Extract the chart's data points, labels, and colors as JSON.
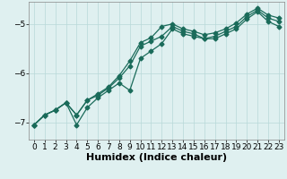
{
  "bg_color": "#dff0f0",
  "grid_color": "#b8d8d8",
  "line_color": "#1a6b5a",
  "marker": "D",
  "markersize": 2.5,
  "linewidth": 0.9,
  "xlabel": "Humidex (Indice chaleur)",
  "xlabel_fontsize": 8,
  "tick_fontsize": 6.5,
  "xlim": [
    -0.5,
    23.5
  ],
  "ylim": [
    -7.35,
    -4.55
  ],
  "yticks": [
    -7,
    -6,
    -5
  ],
  "xticks": [
    0,
    1,
    2,
    3,
    4,
    5,
    6,
    7,
    8,
    9,
    10,
    11,
    12,
    13,
    14,
    15,
    16,
    17,
    18,
    19,
    20,
    21,
    22,
    23
  ],
  "line1_x": [
    0,
    1,
    2,
    3,
    4,
    5,
    6,
    7,
    8,
    9,
    10,
    11,
    12,
    13,
    14,
    15,
    16,
    17,
    18,
    19,
    20,
    21,
    22,
    23
  ],
  "line1_y": [
    -7.05,
    -6.85,
    -6.75,
    -6.6,
    -6.85,
    -6.55,
    -6.45,
    -6.3,
    -6.1,
    -5.85,
    -5.45,
    -5.35,
    -5.25,
    -5.05,
    -5.15,
    -5.2,
    -5.3,
    -5.25,
    -5.15,
    -5.05,
    -4.85,
    -4.72,
    -4.88,
    -4.95
  ],
  "line2_x": [
    0,
    1,
    2,
    3,
    4,
    5,
    6,
    7,
    8,
    9,
    10,
    11,
    12,
    13,
    14,
    15,
    16,
    17,
    18,
    19,
    20,
    21,
    22,
    23
  ],
  "line2_y": [
    -7.05,
    -6.85,
    -6.75,
    -6.6,
    -7.05,
    -6.7,
    -6.5,
    -6.35,
    -6.2,
    -6.35,
    -5.7,
    -5.55,
    -5.4,
    -5.1,
    -5.2,
    -5.25,
    -5.3,
    -5.3,
    -5.2,
    -5.1,
    -4.9,
    -4.75,
    -4.95,
    -5.05
  ],
  "line3_x": [
    0,
    1,
    2,
    3,
    4,
    5,
    6,
    7,
    8,
    9,
    10,
    11,
    12,
    13,
    14,
    15,
    16,
    17,
    18,
    19,
    20,
    21,
    22,
    23
  ],
  "line3_y": [
    -7.05,
    -6.85,
    -6.75,
    -6.6,
    -6.85,
    -6.55,
    -6.42,
    -6.28,
    -6.05,
    -5.75,
    -5.38,
    -5.28,
    -5.05,
    -5.0,
    -5.1,
    -5.15,
    -5.22,
    -5.18,
    -5.1,
    -4.98,
    -4.8,
    -4.68,
    -4.82,
    -4.88
  ]
}
